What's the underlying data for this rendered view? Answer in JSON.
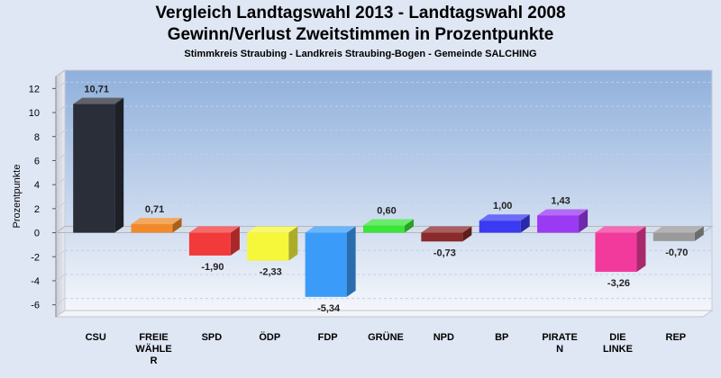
{
  "header": {
    "title_line1": "Vergleich Landtagswahl 2013 - Landtagswahl 2008",
    "title_line2": "Gewinn/Verlust Zweitstimmen in Prozentpunkte",
    "subtitle": "Stimmkreis Straubing - Landkreis Straubing-Bogen - Gemeinde SALCHING"
  },
  "chart_data": {
    "type": "bar",
    "title": "Vergleich Landtagswahl 2013 - Landtagswahl 2008 / Gewinn/Verlust Zweitstimmen in Prozentpunkte",
    "subtitle": "Stimmkreis Straubing - Landkreis Straubing-Bogen - Gemeinde SALCHING",
    "xlabel": "",
    "ylabel": "Prozentpunkte",
    "ylim": [
      -7,
      13
    ],
    "yticks": [
      12,
      10,
      8,
      6,
      4,
      2,
      0,
      -2,
      -4,
      -6
    ],
    "grid": true,
    "categories": [
      "CSU",
      "FREIE WÄHLER",
      "SPD",
      "ÖDP",
      "FDP",
      "GRÜNE",
      "NPD",
      "BP",
      "PIRATEN",
      "DIE LINKE",
      "REP"
    ],
    "category_labels": [
      [
        "CSU"
      ],
      [
        "FREIE",
        "WÄHLE",
        "R"
      ],
      [
        "SPD"
      ],
      [
        "ÖDP"
      ],
      [
        "FDP"
      ],
      [
        "GRÜNE"
      ],
      [
        "NPD"
      ],
      [
        "BP"
      ],
      [
        "PIRATE",
        "N"
      ],
      [
        "DIE",
        "LINKE"
      ],
      [
        "REP"
      ]
    ],
    "values": [
      10.71,
      0.71,
      -1.9,
      -2.33,
      -5.34,
      0.6,
      -0.73,
      1.0,
      1.43,
      -3.26,
      -0.7
    ],
    "value_labels": [
      "10,71",
      "0,71",
      "-1,90",
      "-2,33",
      "-5,34",
      "0,60",
      "-0,73",
      "1,00",
      "1,43",
      "-3,26",
      "-0,70"
    ],
    "colors": [
      "#2a2e38",
      "#f08a2a",
      "#f23a3a",
      "#f6f63a",
      "#3a9cf8",
      "#3ae43a",
      "#8a2a2a",
      "#3a3af2",
      "#9a3af2",
      "#f23a9c",
      "#9a9a9a"
    ]
  }
}
